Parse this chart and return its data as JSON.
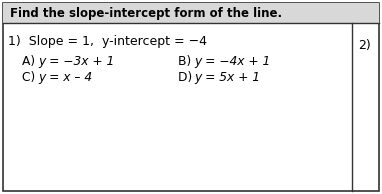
{
  "header": "Find the slope-intercept form of the line.",
  "q1_num": "1)  Slope = 1,  y-intercept = −4",
  "side_num": "2)",
  "opt_A_label": "A) ",
  "opt_A_text": "y = −3x + 1",
  "opt_B_label": "B)  ",
  "opt_B_text": "y = −4x + 1",
  "opt_C_label": "C) ",
  "opt_C_text": "y = x – 4",
  "opt_D_label": "D)  ",
  "opt_D_text": "y = 5x + 1",
  "bg_color": "#ffffff",
  "header_bg": "#d8d8d8",
  "border_color": "#333333",
  "header_font_size": 8.5,
  "question_font_size": 9.0,
  "option_font_size": 8.8,
  "fig_w": 3.82,
  "fig_h": 1.94,
  "dpi": 100
}
